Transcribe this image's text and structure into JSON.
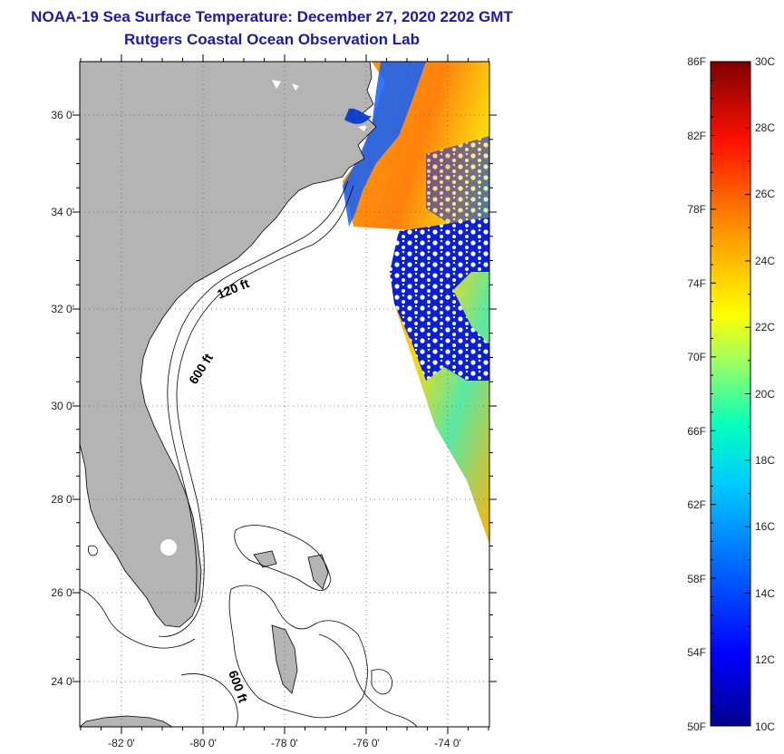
{
  "title": {
    "line1": "NOAA-19 Sea Surface Temperature:  December 27, 2020 2202 GMT",
    "line2": "Rutgers Coastal Ocean Observation Lab"
  },
  "map": {
    "lat_labels": [
      "36 0'",
      "34 0'",
      "32 0'",
      "30 0'",
      "28 0'",
      "26 0'",
      "24 0'"
    ],
    "lon_labels": [
      "-82 0'",
      "-80 0'",
      "-78 0'",
      "-76 0'",
      "-74 0'"
    ],
    "contour_labels": [
      "120 ft",
      "600 ft",
      "600 ft"
    ],
    "colors": {
      "land": "#b4b4b4",
      "ocean": "#ffffff",
      "grid": "#555555"
    }
  },
  "colorbar": {
    "fahrenheit_labels": [
      "86F",
      "82F",
      "78F",
      "74F",
      "70F",
      "66F",
      "62F",
      "58F",
      "54F",
      "50F"
    ],
    "celsius_labels": [
      "30C",
      "28C",
      "26C",
      "24C",
      "22C",
      "20C",
      "18C",
      "16C",
      "14C",
      "12C",
      "10C"
    ],
    "colors": [
      "#00008f",
      "#0000ff",
      "#0080ff",
      "#00ffff",
      "#80ff80",
      "#ffff00",
      "#ff8000",
      "#ff0000",
      "#800000"
    ]
  }
}
